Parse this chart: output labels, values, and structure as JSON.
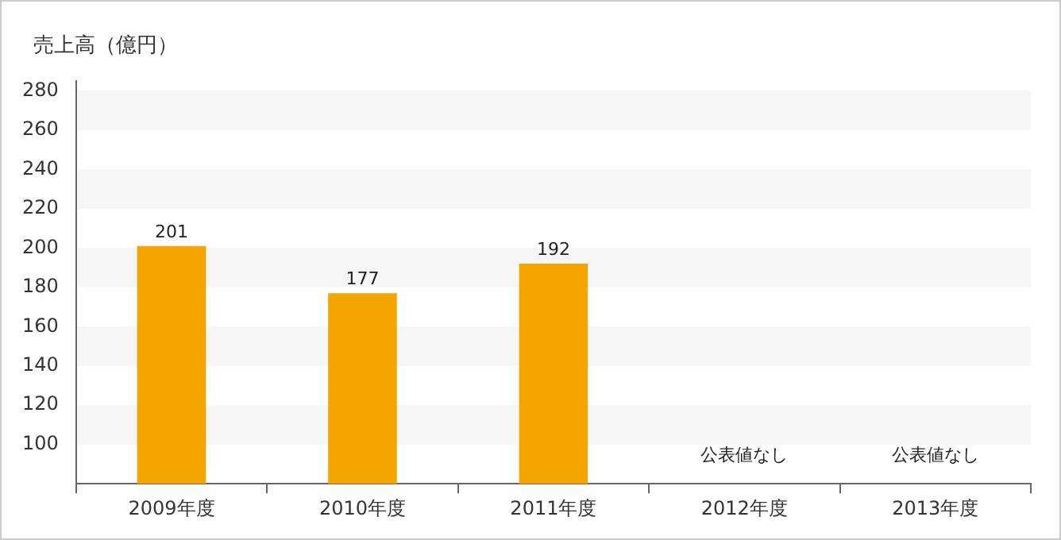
{
  "chart_data": {
    "type": "bar",
    "ylabel": "売上高（億円）",
    "categories": [
      "2009年度",
      "2010年度",
      "2011年度",
      "2012年度",
      "2013年度"
    ],
    "values": [
      201,
      177,
      192,
      null,
      null
    ],
    "color": "#f5a500",
    "ylim": [
      80,
      285
    ],
    "yticks": [
      100,
      120,
      140,
      160,
      180,
      200,
      220,
      240,
      260,
      280
    ],
    "data_labels": true,
    "annotations": [
      "公表値なし",
      "公表値なし"
    ]
  }
}
